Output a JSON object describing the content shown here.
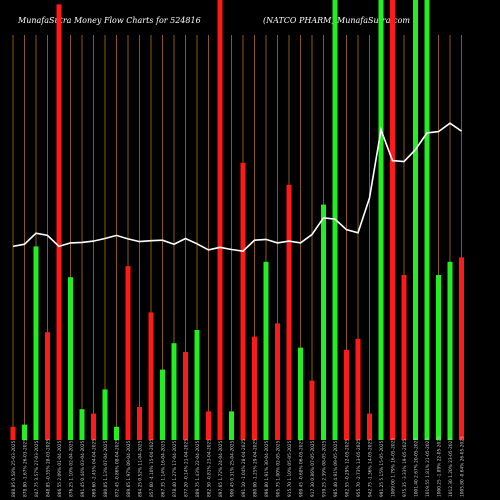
{
  "header": {
    "left": "MunafaSutra  Money Flow  Charts for 524816",
    "right": "(NATCO PHARM) MunafaSutra.com"
  },
  "colors": {
    "background": "#000000",
    "grid": "#8a5a12",
    "up": "#22ee22",
    "down": "#ff1a1a",
    "line": "#ffffff",
    "label": "#cccccc"
  },
  "chart_data": {
    "type": "bar",
    "ylim": [
      0,
      100
    ],
    "bars": [
      {
        "label": "888.85 0.58% 25-03-2025",
        "value": 3,
        "dir": "down"
      },
      {
        "label": "878.80 -1.67% 26-03-2025",
        "value": 3.5,
        "dir": "up"
      },
      {
        "label": "847.75 3.57% 27-03-2025",
        "value": 44,
        "dir": "up"
      },
      {
        "label": "848.85 -0.35% 28-03-2025",
        "value": 24.5,
        "dir": "down"
      },
      {
        "label": "866.55 2.09% 01-04-2025",
        "value": 99,
        "dir": "down"
      },
      {
        "label": "876.25 1.10% 02-04-2025",
        "value": 37,
        "dir": "up"
      },
      {
        "label": "891.45 0.44% 03-04-2025",
        "value": 7,
        "dir": "up"
      },
      {
        "label": "869.60 -2.45% 04-04-2025",
        "value": 6,
        "dir": "down"
      },
      {
        "label": "880.05 1.13% 07-04-2025",
        "value": 11.5,
        "dir": "up"
      },
      {
        "label": "872.45 -0.86% 08-04-2025",
        "value": 3,
        "dir": "up"
      },
      {
        "label": "889.65 1.97% 09-04-2025",
        "value": 39.5,
        "dir": "down"
      },
      {
        "label": "894.25 0.52% 11-04-2025",
        "value": 7.5,
        "dir": "down"
      },
      {
        "label": "857.60 -4.10% 15-04-2025",
        "value": 29,
        "dir": "down"
      },
      {
        "label": "867.35 1.14% 16-04-2025",
        "value": 16,
        "dir": "up"
      },
      {
        "label": "878.40 1.27% 17-04-2025",
        "value": 22,
        "dir": "up"
      },
      {
        "label": "877.20 -0.14% 21-04-2025",
        "value": 20,
        "dir": "down"
      },
      {
        "label": "889.75 1.43% 22-04-2025",
        "value": 25,
        "dir": "up"
      },
      {
        "label": "882.50 -0.81% 23-04-2025",
        "value": 6.5,
        "dir": "down"
      },
      {
        "label": "897.65 1.72% 24-04-2025",
        "value": 100,
        "dir": "down"
      },
      {
        "label": "900.45 0.31% 25-04-2025",
        "value": 6.5,
        "dir": "up"
      },
      {
        "label": "891.10 -1.04% 28-04-2025",
        "value": 63,
        "dir": "down"
      },
      {
        "label": "880.00 -1.25% 29-04-2025",
        "value": 23.5,
        "dir": "down"
      },
      {
        "label": "896.80 1.91% 30-04-2025",
        "value": 40.5,
        "dir": "up"
      },
      {
        "label": "905.75 1.00% 02-05-2025",
        "value": 26.5,
        "dir": "down"
      },
      {
        "label": "915.70 1.10% 05-05-2025",
        "value": 58,
        "dir": "down"
      },
      {
        "label": "909.45 -0.68% 06-05-2025",
        "value": 21,
        "dir": "up"
      },
      {
        "label": "917.30 0.86% 07-05-2025",
        "value": 13.5,
        "dir": "down"
      },
      {
        "label": "939.25 2.39% 08-05-2025",
        "value": 53.5,
        "dir": "up"
      },
      {
        "label": "985.40 4.91% 09-05-2025",
        "value": 100,
        "dir": "up"
      },
      {
        "label": "982.55 -0.29% 12-05-2025",
        "value": 20.5,
        "dir": "down"
      },
      {
        "label": "955.70 -2.73% 13-05-2025",
        "value": 23,
        "dir": "down"
      },
      {
        "label": "942.75 -1.36% 14-05-2025",
        "value": 6,
        "dir": "down"
      },
      {
        "label": "991.25 5.15% 15-05-2025",
        "value": 100,
        "dir": "up"
      },
      {
        "label": "1009.00 1.79% 16-05-2025",
        "value": 100,
        "dir": "down"
      },
      {
        "label": "975.35 -3.33% 19-05-2025",
        "value": 37.5,
        "dir": "down"
      },
      {
        "label": "1001.40 2.67% 20-05-2025",
        "value": 100,
        "dir": "up"
      },
      {
        "label": "1019.55 1.81% 21-05-2025",
        "value": 100,
        "dir": "up"
      },
      {
        "label": "1000.25 -1.89% 22-05-2025",
        "value": 37.5,
        "dir": "up"
      },
      {
        "label": "1012.30 1.20% 23-05-2025",
        "value": 40.5,
        "dir": "up"
      },
      {
        "label": "1005.80 -0.64% 26-05-2025",
        "value": 41.5,
        "dir": "down"
      }
    ],
    "line": [
      44,
      44.5,
      47,
      46.5,
      44,
      44.8,
      44.9,
      45.2,
      45.8,
      46.5,
      45.7,
      45.1,
      45.3,
      45.4,
      44.5,
      45.8,
      44.6,
      43.2,
      43.8,
      43.3,
      42.9,
      45.4,
      45.6,
      44.8,
      45.2,
      44.8,
      46.7,
      50.5,
      50.2,
      47.8,
      47.1,
      55,
      70.5,
      63.5,
      63.3,
      66,
      69.8,
      70.1,
      72,
      70.2
    ]
  }
}
